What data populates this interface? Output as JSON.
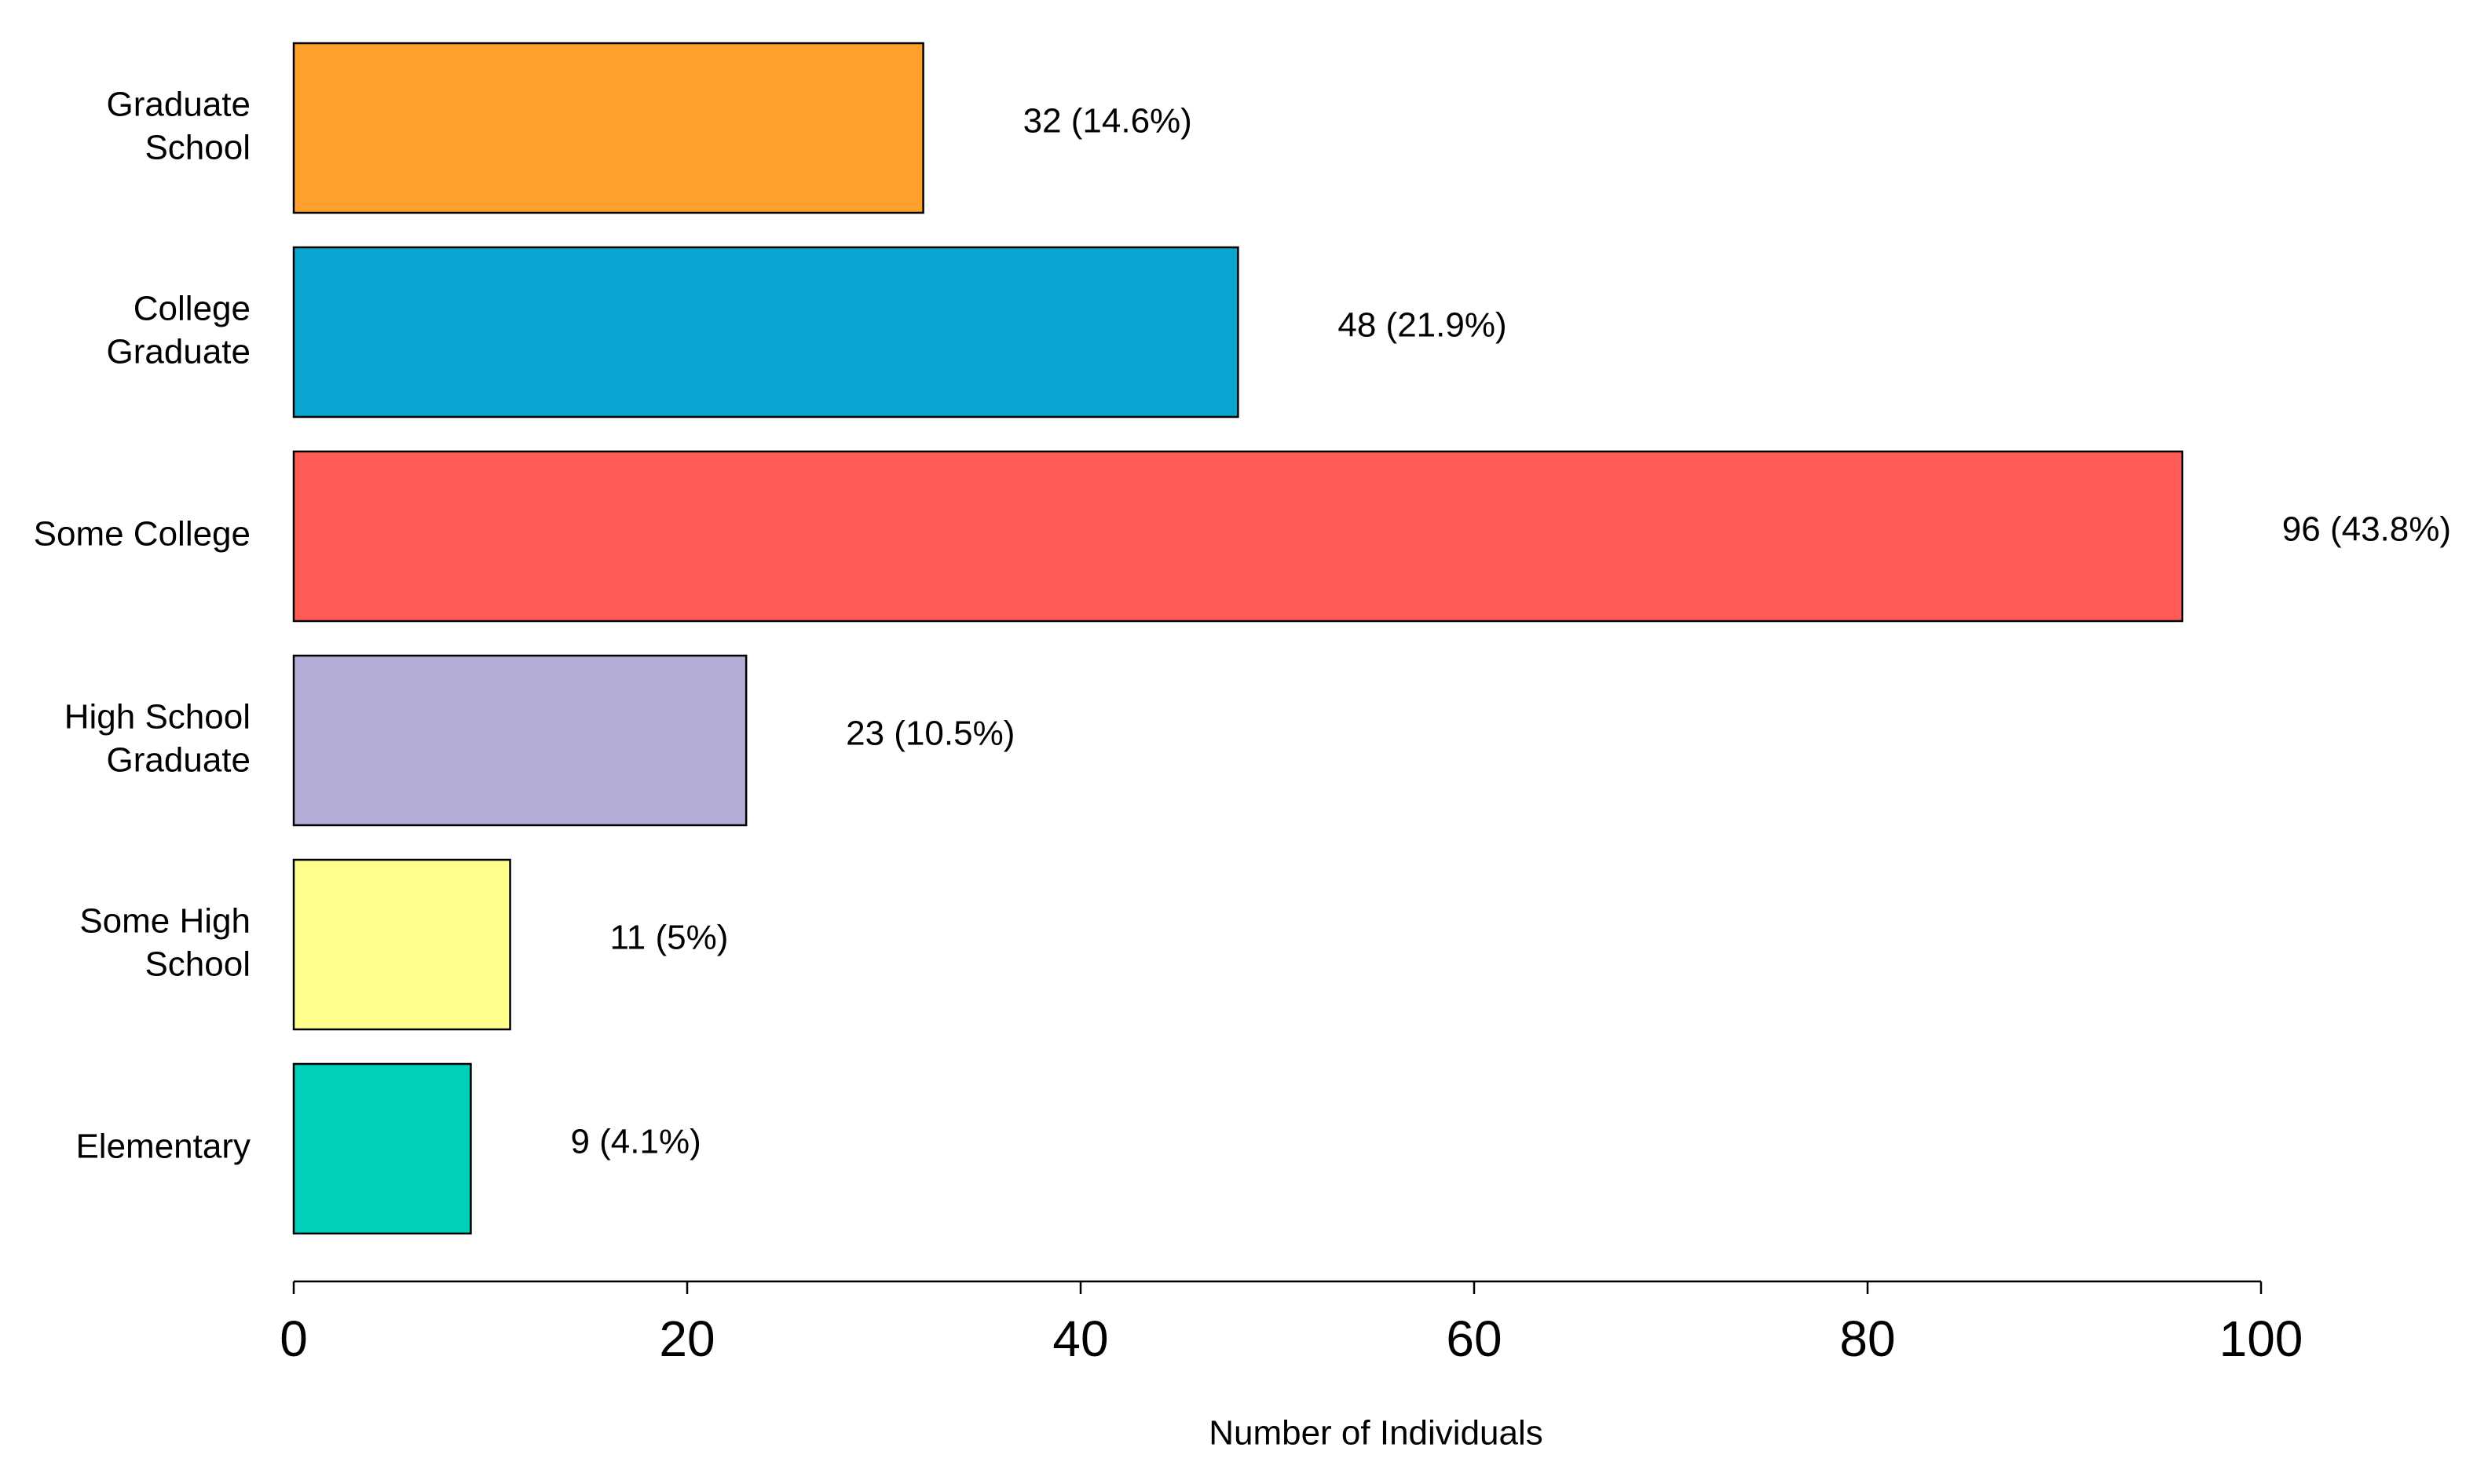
{
  "chart_data": {
    "type": "barh",
    "categories": [
      "Graduate\nSchool",
      "College\nGraduate",
      "Some College",
      "High School\nGraduate",
      "Some High\nSchool",
      "Elementary"
    ],
    "values": [
      32,
      48,
      96,
      23,
      11,
      9
    ],
    "value_labels": [
      "32 (14.6%)",
      "48 (21.9%)",
      "96 (43.8%)",
      "23 (10.5%)",
      "11 (5%)",
      "9 (4.1%)"
    ],
    "colors": [
      "#ffa02c",
      "#0ca5d2",
      "#ff5c58",
      "#b4acd6",
      "#ffff8c",
      "#00cfb9"
    ],
    "xlabel": "Number of Individuals",
    "xlim": [
      0,
      100
    ],
    "xticks": [
      0,
      20,
      40,
      60,
      80,
      100
    ]
  }
}
